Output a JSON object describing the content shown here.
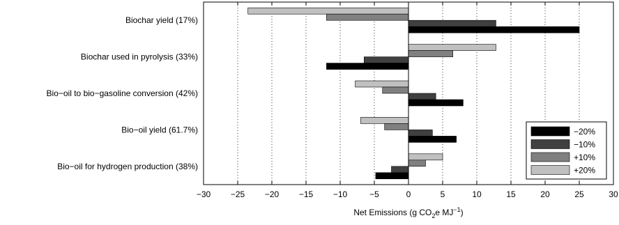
{
  "chart_data": {
    "type": "bar",
    "orientation": "horizontal",
    "categories": [
      "Biochar yield (17%)",
      "Biochar used in pyrolysis (33%)",
      "Bio−oil to bio−gasoline conversion (42%)",
      "Bio−oil yield (61.7%)",
      "Bio−oil for hydrogen production (38%)"
    ],
    "series": [
      {
        "name": "−20%",
        "color": "#000000",
        "values": [
          25,
          -12,
          8,
          7,
          -4.8
        ]
      },
      {
        "name": "−10%",
        "color": "#404040",
        "values": [
          12.8,
          -6.5,
          4,
          3.5,
          -2.5
        ]
      },
      {
        "name": "+10%",
        "color": "#808080",
        "values": [
          -12,
          6.5,
          -3.8,
          -3.5,
          2.5
        ]
      },
      {
        "name": "+20%",
        "color": "#c0c0c0",
        "values": [
          -23.5,
          12.8,
          -7.8,
          -7,
          5
        ]
      }
    ],
    "xlim": [
      -30,
      30
    ],
    "xticks": [
      -30,
      -25,
      -20,
      -15,
      -10,
      -5,
      0,
      5,
      10,
      15,
      20,
      25,
      30
    ],
    "xlabel": {
      "main": "Net Emissions (g CO",
      "sub": "2",
      "mid": "e MJ",
      "sup": "−1",
      "end": ")"
    },
    "grid": "x-dotted",
    "legend_position": "lower-right"
  }
}
